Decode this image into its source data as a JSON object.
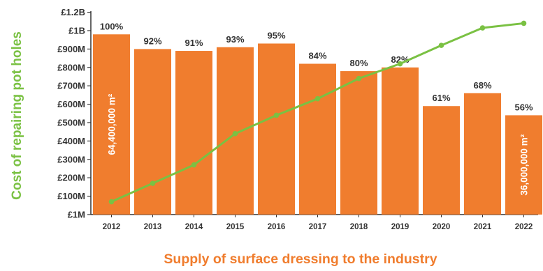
{
  "chart_data": {
    "type": "bar",
    "categories": [
      "2012",
      "2013",
      "2014",
      "2015",
      "2016",
      "2017",
      "2018",
      "2019",
      "2020",
      "2021",
      "2022"
    ],
    "series": [
      {
        "values": [
          980,
          900,
          890,
          910,
          930,
          820,
          780,
          800,
          590,
          660,
          540
        ],
        "labels": [
          "100%",
          "92%",
          "91%",
          "93%",
          "95%",
          "84%",
          "80%",
          "82%",
          "61%",
          "68%",
          "56%"
        ]
      },
      {
        "values": [
          70,
          170,
          270,
          440,
          540,
          630,
          740,
          820,
          920,
          1015,
          1040
        ]
      }
    ],
    "y_tick_labels": [
      "£1M",
      "£100M",
      "£200M",
      "£300M",
      "£400M",
      "£500M",
      "£600M",
      "£700M",
      "£800M",
      "£900M",
      "£1B",
      "£1.2B"
    ],
    "ylim": [
      0,
      1100
    ],
    "ylabel": "Cost of repairing pot holes",
    "xlabel": "Supply of surface dressing to the industry",
    "bar_annotations": [
      {
        "category": "2012",
        "text": "64,400,000 m²"
      },
      {
        "category": "2022",
        "text": "36,000,000 m²"
      }
    ],
    "grid": false,
    "legend": "none",
    "colors": {
      "bars": "#f07d2e",
      "line": "#7ac143",
      "ylabel": "#7ac143",
      "xlabel": "#f07d2e",
      "text": "#333333"
    }
  }
}
